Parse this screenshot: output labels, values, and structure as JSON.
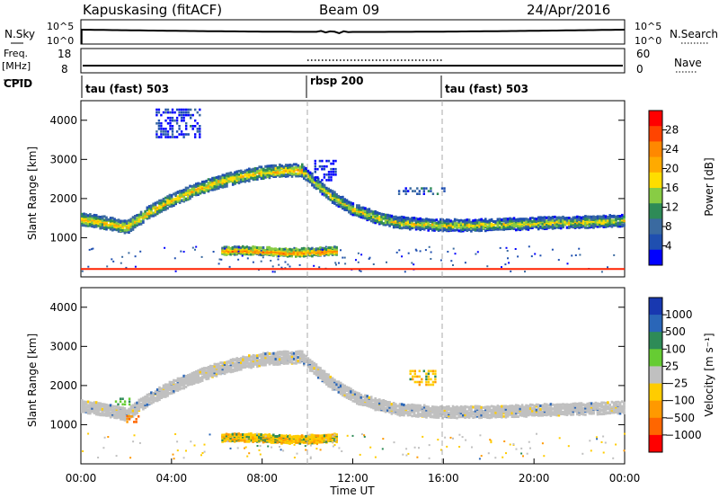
{
  "header": {
    "station": "Kapuskasing (fitACF)",
    "beam": "Beam 09",
    "date": "24/Apr/2016"
  },
  "top_panel": {
    "left_label": "N.Sky",
    "right_label": "N.Search",
    "left_ticks": [
      "10^5",
      "10^0"
    ],
    "right_ticks": [
      "10^5",
      "10^0"
    ]
  },
  "freq_panel": {
    "left_label_1": "Freq.",
    "left_label_2": "[MHz]",
    "right_label": "Nave",
    "left_ticks": [
      "18",
      "8"
    ],
    "right_ticks": [
      "60",
      "0"
    ]
  },
  "cpid": {
    "label": "CPID",
    "segments": [
      {
        "text": "tau (fast) 503",
        "start_hr": 0
      },
      {
        "text": "rbsp 200",
        "start_hr": 10
      },
      {
        "text": "tau (fast) 503",
        "start_hr": 16
      }
    ]
  },
  "time_axis": {
    "label": "Time UT",
    "ticks": [
      "00:00",
      "04:00",
      "08:00",
      "12:00",
      "16:00",
      "20:00",
      "00:00"
    ]
  },
  "power_colorbar": {
    "label": "Power [dB]",
    "ticks": [
      "28",
      "24",
      "20",
      "16",
      "12",
      "8",
      "4"
    ],
    "colors": [
      "#ff0000",
      "#ff4400",
      "#ff8800",
      "#ffaa00",
      "#ffdd00",
      "#88cc44",
      "#2e8b57",
      "#3a6aa0",
      "#1f4fb0",
      "#0000ff"
    ]
  },
  "velocity_colorbar": {
    "label": "Velocity [m s⁻¹]",
    "ticks": [
      "1000",
      "500",
      "100",
      "25",
      "−25",
      "−100",
      "−500",
      "−1000"
    ],
    "colors": [
      "#1838b0",
      "#2a66b8",
      "#2e8b57",
      "#66cc33",
      "#c0c0c0",
      "#ffcc00",
      "#ff9900",
      "#ff6600",
      "#ff0000"
    ]
  },
  "chart_data": {
    "type": "heatmap",
    "title": "Kapuskasing (fitACF)",
    "xlabel": "Time UT",
    "ylabel": "Slant Range [km]",
    "xlim": [
      0,
      24
    ],
    "ylim": [
      0,
      4500
    ],
    "panels": [
      {
        "name": "Power",
        "unit": "dB",
        "y_ticks": [
          1000,
          2000,
          3000,
          4000
        ],
        "bands": [
          {
            "t": [
              0,
              1,
              2,
              3,
              4,
              5,
              6,
              7,
              8,
              9,
              9.8
            ],
            "center": [
              1500,
              1420,
              1300,
              1700,
              2000,
              2250,
              2450,
              2600,
              2700,
              2750,
              2750
            ],
            "width": 280,
            "value": 20
          },
          {
            "t": [
              9.8,
              11,
              12,
              13,
              14,
              15,
              16,
              17,
              18,
              19,
              20,
              21,
              22,
              23,
              24
            ],
            "center": [
              2700,
              2100,
              1750,
              1550,
              1420,
              1380,
              1350,
              1350,
              1360,
              1380,
              1400,
              1420,
              1430,
              1450,
              1480
            ],
            "width": 260,
            "value": 18
          },
          {
            "t": [
              6.2,
              7,
              8,
              9,
              10,
              11.3
            ],
            "center": [
              700,
              710,
              690,
              650,
              660,
              700
            ],
            "width": 170,
            "value": 24
          }
        ],
        "patches": [
          {
            "t": [
              3.3,
              5.2
            ],
            "r": [
              3600,
              4300
            ],
            "value": 8
          },
          {
            "t": [
              14.0,
              16.0
            ],
            "r": [
              2150,
              2350
            ],
            "value": 12
          },
          {
            "t": [
              10.3,
              11.2
            ],
            "r": [
              2500,
              3000
            ],
            "value": 6
          }
        ],
        "ground_line": {
          "range": 200,
          "value": 26
        }
      },
      {
        "name": "Velocity",
        "unit": "m s^-1",
        "y_ticks": [
          1000,
          2000,
          3000,
          4000
        ],
        "bands": [
          {
            "t": [
              0,
              1,
              2,
              3,
              4,
              5,
              6,
              7,
              8,
              9,
              9.8
            ],
            "center": [
              1500,
              1420,
              1300,
              1700,
              2000,
              2250,
              2450,
              2600,
              2700,
              2750,
              2750
            ],
            "width": 280,
            "value": 0
          },
          {
            "t": [
              9.8,
              11,
              12,
              13,
              14,
              15,
              16,
              17,
              18,
              19,
              20,
              21,
              22,
              23,
              24
            ],
            "center": [
              2700,
              2100,
              1750,
              1550,
              1420,
              1380,
              1350,
              1350,
              1360,
              1380,
              1400,
              1420,
              1430,
              1450,
              1480
            ],
            "width": 260,
            "value": 0
          },
          {
            "t": [
              6.2,
              7,
              8,
              9,
              10,
              11.3
            ],
            "center": [
              700,
              710,
              690,
              650,
              660,
              700
            ],
            "width": 170,
            "value": -150
          }
        ],
        "patches": [
          {
            "t": [
              2.0,
              2.6
            ],
            "r": [
              1100,
              1300
            ],
            "value": -500
          },
          {
            "t": [
              14.5,
              15.6
            ],
            "r": [
              2050,
              2400
            ],
            "value": -300
          },
          {
            "t": [
              1.5,
              2.2
            ],
            "r": [
              1550,
              1750
            ],
            "value": 120
          }
        ]
      }
    ],
    "noise_series": [
      {
        "name": "N.Sky",
        "level": "flat near 10^5"
      },
      {
        "name": "Freq.",
        "value_mhz": 10.5
      },
      {
        "name": "Nave",
        "t": [
          10,
          16
        ],
        "value": 30
      }
    ]
  }
}
